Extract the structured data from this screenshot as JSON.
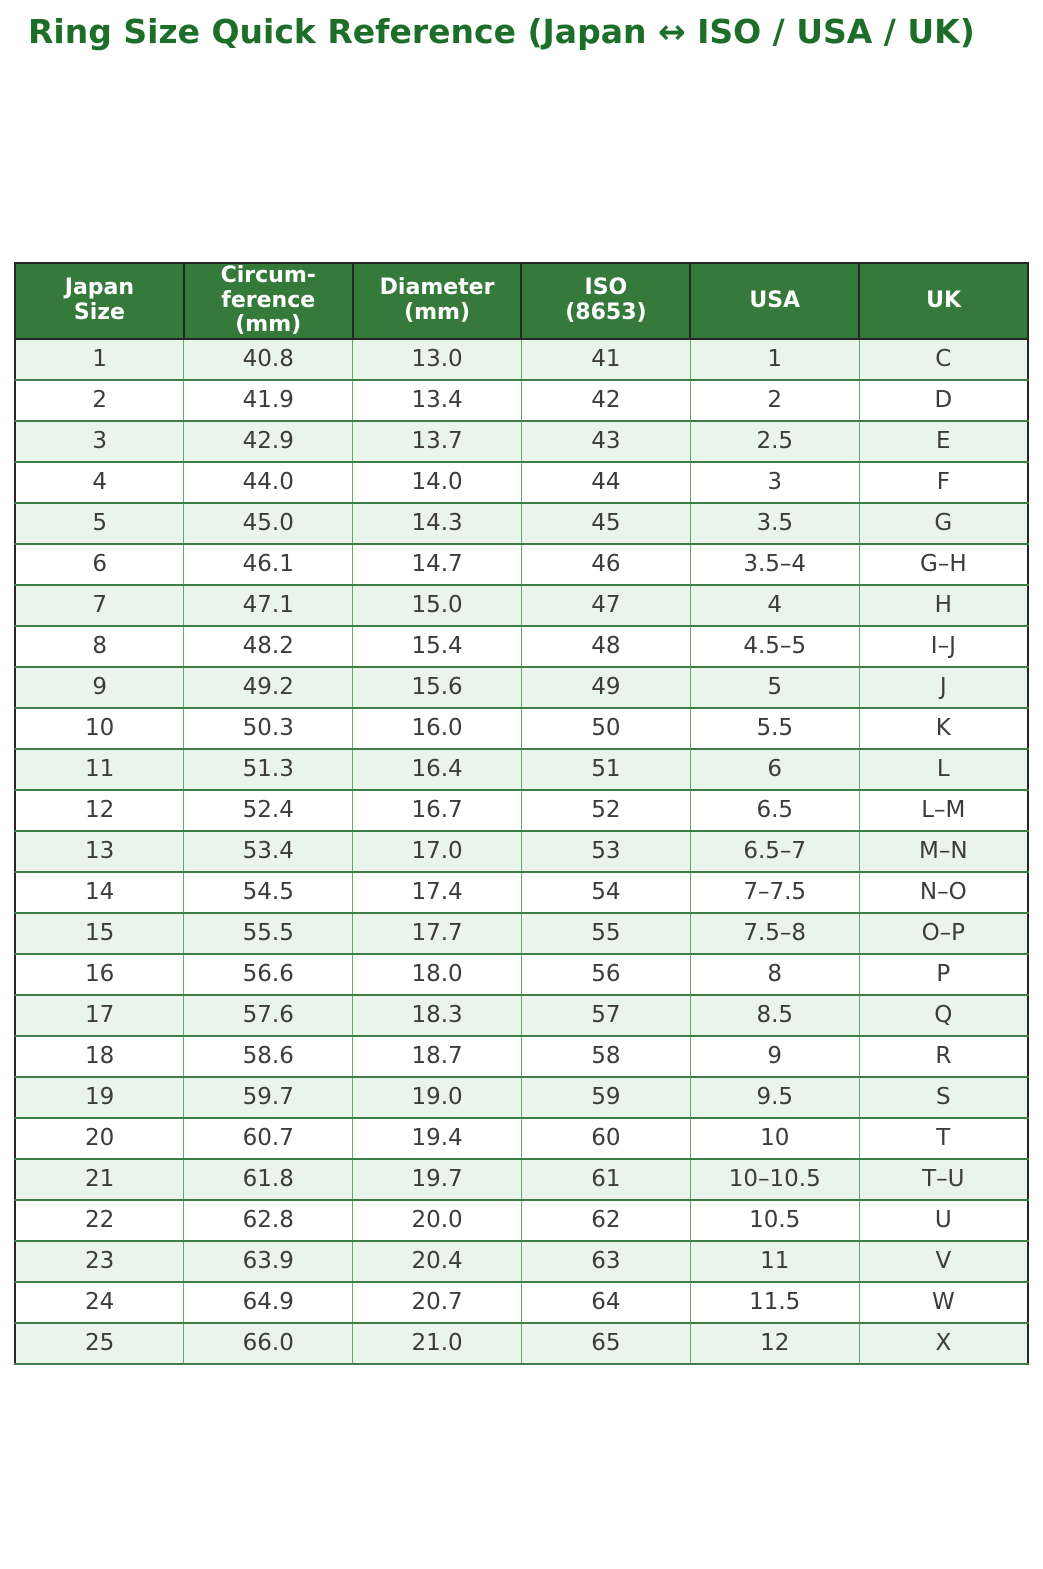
{
  "title": "Ring Size Quick Reference (Japan ↔ ISO / USA / UK)",
  "colors": {
    "title_text": "#1d6e29",
    "header_bg": "#35793b",
    "header_text": "#ffffff",
    "stripe": "#e9f5ea",
    "body_text": "#3c3c3c",
    "border_black": "#262626",
    "border_green": "#3e7d43",
    "border_green_light": "#6aa46d"
  },
  "chart_data": {
    "type": "table",
    "title": "Ring Size Quick Reference (Japan ↔ ISO / USA / UK)",
    "columns": [
      "Japan Size",
      "Circumference (mm)",
      "Diameter (mm)",
      "ISO (8653)",
      "USA",
      "UK"
    ],
    "columns_display": [
      "Japan\nSize",
      "Circum-\nference\n(mm)",
      "Diameter\n(mm)",
      "ISO\n(8653)",
      "USA",
      "UK"
    ],
    "column_keys": [
      "japan-size",
      "circumference-mm",
      "diameter-mm",
      "iso-8653",
      "usa",
      "uk"
    ],
    "rows": [
      [
        "1",
        "40.8",
        "13.0",
        "41",
        "1",
        "C"
      ],
      [
        "2",
        "41.9",
        "13.4",
        "42",
        "2",
        "D"
      ],
      [
        "3",
        "42.9",
        "13.7",
        "43",
        "2.5",
        "E"
      ],
      [
        "4",
        "44.0",
        "14.0",
        "44",
        "3",
        "F"
      ],
      [
        "5",
        "45.0",
        "14.3",
        "45",
        "3.5",
        "G"
      ],
      [
        "6",
        "46.1",
        "14.7",
        "46",
        "3.5–4",
        "G–H"
      ],
      [
        "7",
        "47.1",
        "15.0",
        "47",
        "4",
        "H"
      ],
      [
        "8",
        "48.2",
        "15.4",
        "48",
        "4.5–5",
        "I–J"
      ],
      [
        "9",
        "49.2",
        "15.6",
        "49",
        "5",
        "J"
      ],
      [
        "10",
        "50.3",
        "16.0",
        "50",
        "5.5",
        "K"
      ],
      [
        "11",
        "51.3",
        "16.4",
        "51",
        "6",
        "L"
      ],
      [
        "12",
        "52.4",
        "16.7",
        "52",
        "6.5",
        "L–M"
      ],
      [
        "13",
        "53.4",
        "17.0",
        "53",
        "6.5–7",
        "M–N"
      ],
      [
        "14",
        "54.5",
        "17.4",
        "54",
        "7–7.5",
        "N–O"
      ],
      [
        "15",
        "55.5",
        "17.7",
        "55",
        "7.5–8",
        "O–P"
      ],
      [
        "16",
        "56.6",
        "18.0",
        "56",
        "8",
        "P"
      ],
      [
        "17",
        "57.6",
        "18.3",
        "57",
        "8.5",
        "Q"
      ],
      [
        "18",
        "58.6",
        "18.7",
        "58",
        "9",
        "R"
      ],
      [
        "19",
        "59.7",
        "19.0",
        "59",
        "9.5",
        "S"
      ],
      [
        "20",
        "60.7",
        "19.4",
        "60",
        "10",
        "T"
      ],
      [
        "21",
        "61.8",
        "19.7",
        "61",
        "10–10.5",
        "T–U"
      ],
      [
        "22",
        "62.8",
        "20.0",
        "62",
        "10.5",
        "U"
      ],
      [
        "23",
        "63.9",
        "20.4",
        "63",
        "11",
        "V"
      ],
      [
        "24",
        "64.9",
        "20.7",
        "64",
        "11.5",
        "W"
      ],
      [
        "25",
        "66.0",
        "21.0",
        "65",
        "12",
        "X"
      ]
    ],
    "layout": {
      "stripe_pattern": "odd rows (1st, 3rd, ...) light green, even rows white",
      "header_style": "dark green band, white bold text, black cell borders"
    }
  }
}
